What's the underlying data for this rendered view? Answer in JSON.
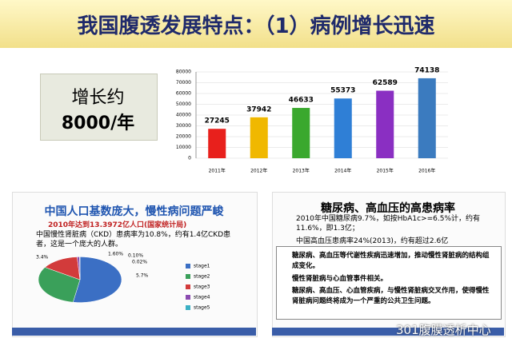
{
  "title": "我国腹透发展特点：（1）病例增长迅速",
  "callout": [
    "增长约",
    "8000/年"
  ],
  "chart_data": [
    {
      "type": "bar",
      "categories": [
        "2011年",
        "2012年",
        "2013年",
        "2014年",
        "2015年",
        "2016年"
      ],
      "values": [
        27245,
        37942,
        46633,
        55373,
        62589,
        74138
      ],
      "colors": [
        "#e8201c",
        "#f0b800",
        "#3aa82e",
        "#2f7fd6",
        "#8a2fc2",
        "#3b7bbf"
      ],
      "ylim": [
        0,
        80000
      ],
      "yticks": [
        0,
        10000,
        20000,
        30000,
        40000,
        50000,
        60000,
        70000,
        80000
      ],
      "grid": true
    },
    {
      "type": "pie",
      "categories": [
        "stage1",
        "stage2",
        "stage3",
        "stage4",
        "stage5"
      ],
      "values": [
        5.7,
        3.4,
        1.6,
        0.1,
        0.02
      ],
      "value_labels": [
        "5.7%",
        "3.4%",
        "1.60%",
        "0.10%",
        "0.02%"
      ],
      "colors": [
        "#3b6fc4",
        "#3aa05a",
        "#d23b3b",
        "#8a4bb0",
        "#3bb0c4"
      ]
    }
  ],
  "left_panel": {
    "heading": "中国人口基数庞大，慢性病问题严峻",
    "note": "2010年达到13.3972亿人口(国家统计局)",
    "bullet": "中国慢性肾脏病（CKD）患病率为10.8%，约有1.4亿CKD患者，这是一个庞大的人群。"
  },
  "right_panel": {
    "heading": "糖尿病、高血压的高患病率",
    "bullets": [
      "2010年中国糖尿病9.7%，如按HbA1c>=6.5%计，约有11.6%，即1.3亿；",
      "中国高血压患病率24%(2013)，约有超过2.6亿"
    ],
    "box": [
      "糖尿病、高血压等代谢性疾病迅速增加，推动慢性肾脏病的结构组成变化。",
      "慢性肾脏病与心血管事件相关。",
      "糖尿病、高血压、心血管疾病，与慢性肾脏病交叉作用，使得慢性肾脏病问题终将成为一个严重的公共卫生问题。"
    ]
  },
  "watermark": "301腹膜透析中心"
}
